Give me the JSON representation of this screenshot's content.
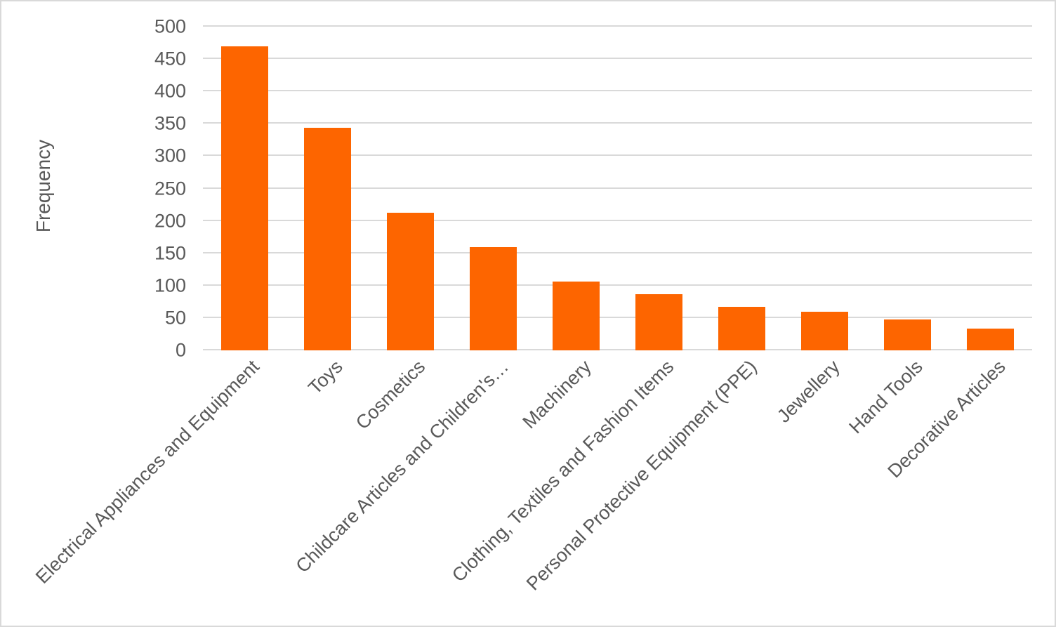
{
  "chart_data": {
    "type": "bar",
    "title": "",
    "xlabel": "",
    "ylabel": "Frequency",
    "ylim": [
      0,
      500
    ],
    "ytick_step": 50,
    "yticks": [
      0,
      50,
      100,
      150,
      200,
      250,
      300,
      350,
      400,
      450,
      500
    ],
    "grid": true,
    "legend": false,
    "bar_color": "#FD6500",
    "gridline_color": "#D9D9D9",
    "text_color": "#595959",
    "background_color": "#FFFFFF",
    "categories": [
      "Electrical Appliances and Equipment",
      "Toys",
      "Cosmetics",
      "Childcare  Articles and Children's…",
      "Machinery",
      "Clothing, Textiles and Fashion Items",
      "Personal Protective Equipment (PPE)",
      "Jewellery",
      "Hand Tools",
      "Decorative Articles"
    ],
    "values": [
      470,
      344,
      213,
      159,
      106,
      87,
      67,
      60,
      48,
      34
    ]
  }
}
